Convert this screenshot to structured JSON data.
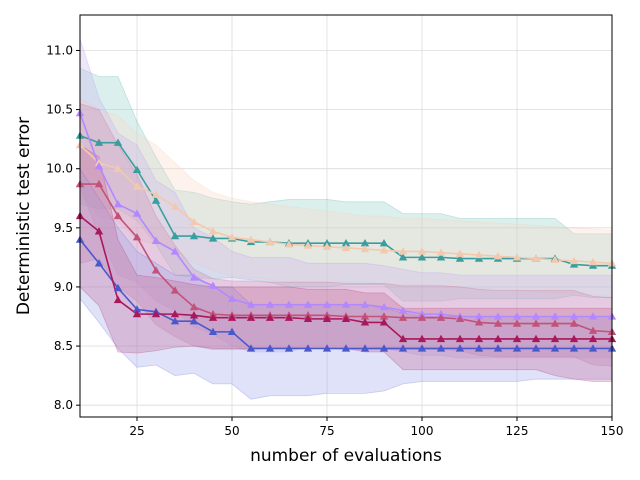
{
  "chart_data": {
    "type": "line",
    "xlabel": "number of evaluations",
    "ylabel": "Deterministic test error",
    "xlim": [
      10,
      150
    ],
    "ylim": [
      7.9,
      11.3
    ],
    "xticks": [
      25,
      50,
      75,
      100,
      125,
      150
    ],
    "yticks": [
      8.0,
      8.5,
      9.0,
      9.5,
      10.0,
      10.5,
      11.0
    ],
    "grid": true,
    "x": [
      10,
      15,
      20,
      25,
      30,
      35,
      40,
      45,
      50,
      55,
      60,
      65,
      70,
      75,
      80,
      85,
      90,
      95,
      100,
      105,
      110,
      115,
      120,
      125,
      130,
      135,
      140,
      145,
      150
    ],
    "series": [
      {
        "color": "#3a9e9e",
        "fill": "#8fd0c8",
        "values": [
          10.28,
          10.22,
          10.22,
          9.99,
          9.73,
          9.43,
          9.43,
          9.41,
          9.41,
          9.38,
          9.38,
          9.37,
          9.37,
          9.37,
          9.37,
          9.37,
          9.37,
          9.25,
          9.25,
          9.25,
          9.24,
          9.24,
          9.24,
          9.24,
          9.24,
          9.24,
          9.19,
          9.18,
          9.18
        ],
        "upper": [
          10.85,
          10.78,
          10.78,
          10.4,
          10.1,
          9.82,
          9.8,
          9.75,
          9.72,
          9.7,
          9.72,
          9.74,
          9.74,
          9.74,
          9.72,
          9.72,
          9.72,
          9.62,
          9.62,
          9.62,
          9.58,
          9.58,
          9.58,
          9.58,
          9.58,
          9.58,
          9.45,
          9.45,
          9.45
        ],
        "lower": [
          9.7,
          9.66,
          9.66,
          9.56,
          9.36,
          9.1,
          9.08,
          9.07,
          9.08,
          9.06,
          9.04,
          9.0,
          9.0,
          9.0,
          9.02,
          9.02,
          9.02,
          8.88,
          8.88,
          8.88,
          8.9,
          8.9,
          8.9,
          8.9,
          8.9,
          8.9,
          8.93,
          8.91,
          8.91
        ]
      },
      {
        "color": "#f2c9ae",
        "fill": "#fbd8c6",
        "values": [
          10.2,
          10.05,
          10.0,
          9.85,
          9.78,
          9.68,
          9.55,
          9.47,
          9.42,
          9.4,
          9.38,
          9.36,
          9.35,
          9.34,
          9.33,
          9.32,
          9.31,
          9.3,
          9.3,
          9.29,
          9.28,
          9.27,
          9.26,
          9.25,
          9.24,
          9.23,
          9.22,
          9.21,
          9.2
        ],
        "upper": [
          10.6,
          10.5,
          10.45,
          10.3,
          10.2,
          10.05,
          9.9,
          9.8,
          9.75,
          9.72,
          9.7,
          9.68,
          9.66,
          9.64,
          9.62,
          9.6,
          9.6,
          9.58,
          9.58,
          9.57,
          9.56,
          9.55,
          9.54,
          9.53,
          9.52,
          9.51,
          9.5,
          9.49,
          9.48
        ],
        "lower": [
          9.8,
          9.6,
          9.55,
          9.4,
          9.36,
          9.31,
          9.2,
          9.14,
          9.09,
          9.08,
          9.06,
          9.04,
          9.04,
          9.04,
          9.04,
          9.04,
          9.02,
          9.02,
          9.02,
          9.01,
          9.0,
          8.99,
          8.98,
          8.97,
          8.96,
          8.95,
          8.94,
          8.93,
          8.92
        ]
      },
      {
        "color": "#b388ff",
        "fill": "#c9b2f0",
        "values": [
          10.47,
          10.02,
          9.7,
          9.62,
          9.39,
          9.3,
          9.08,
          9.01,
          8.9,
          8.85,
          8.85,
          8.85,
          8.85,
          8.85,
          8.85,
          8.85,
          8.83,
          8.8,
          8.77,
          8.77,
          8.75,
          8.75,
          8.75,
          8.75,
          8.75,
          8.75,
          8.75,
          8.75,
          8.75
        ],
        "upper": [
          11.1,
          10.6,
          10.3,
          10.2,
          9.9,
          9.8,
          9.5,
          9.42,
          9.3,
          9.25,
          9.25,
          9.25,
          9.2,
          9.2,
          9.2,
          9.2,
          9.18,
          9.15,
          9.12,
          9.12,
          9.1,
          9.1,
          9.1,
          9.1,
          9.1,
          9.1,
          9.1,
          9.1,
          9.1
        ],
        "lower": [
          9.84,
          9.44,
          9.1,
          9.04,
          8.88,
          8.8,
          8.66,
          8.6,
          8.5,
          8.45,
          8.45,
          8.45,
          8.5,
          8.5,
          8.5,
          8.5,
          8.48,
          8.45,
          8.42,
          8.42,
          8.4,
          8.4,
          8.4,
          8.4,
          8.4,
          8.4,
          8.4,
          8.4,
          8.4
        ]
      },
      {
        "color": "#c2527a",
        "fill": "#d58fae",
        "values": [
          9.87,
          9.87,
          9.6,
          9.42,
          9.14,
          8.97,
          8.83,
          8.77,
          8.76,
          8.76,
          8.76,
          8.76,
          8.76,
          8.76,
          8.75,
          8.75,
          8.75,
          8.74,
          8.74,
          8.74,
          8.73,
          8.7,
          8.69,
          8.69,
          8.69,
          8.69,
          8.69,
          8.63,
          8.62
        ],
        "upper": [
          10.55,
          10.5,
          10.2,
          9.95,
          9.6,
          9.35,
          9.15,
          9.07,
          9.05,
          9.05,
          9.04,
          9.04,
          9.04,
          9.04,
          9.03,
          9.03,
          9.03,
          9.01,
          9.01,
          9.01,
          9.0,
          8.98,
          8.97,
          8.97,
          8.97,
          8.97,
          8.97,
          8.92,
          8.91
        ],
        "lower": [
          9.2,
          9.24,
          9.0,
          8.88,
          8.68,
          8.58,
          8.5,
          8.47,
          8.47,
          8.47,
          8.48,
          8.48,
          8.48,
          8.48,
          8.47,
          8.47,
          8.47,
          8.47,
          8.47,
          8.47,
          8.46,
          8.42,
          8.41,
          8.41,
          8.41,
          8.41,
          8.41,
          8.34,
          8.33
        ]
      },
      {
        "color": "#4a58cc",
        "fill": "#9aa4ec",
        "values": [
          9.4,
          9.2,
          8.99,
          8.81,
          8.79,
          8.71,
          8.71,
          8.62,
          8.62,
          8.48,
          8.48,
          8.48,
          8.48,
          8.48,
          8.48,
          8.48,
          8.48,
          8.48,
          8.48,
          8.48,
          8.48,
          8.48,
          8.48,
          8.48,
          8.48,
          8.48,
          8.48,
          8.48,
          8.48
        ],
        "upper": [
          10.0,
          9.75,
          9.5,
          9.3,
          9.2,
          9.1,
          9.1,
          9.0,
          9.0,
          8.85,
          8.85,
          8.85,
          8.85,
          8.85,
          8.85,
          8.85,
          8.82,
          8.78,
          8.75,
          8.75,
          8.75,
          8.75,
          8.75,
          8.75,
          8.75,
          8.75,
          8.75,
          8.75,
          8.75
        ],
        "lower": [
          8.9,
          8.7,
          8.48,
          8.32,
          8.34,
          8.25,
          8.27,
          8.18,
          8.18,
          8.05,
          8.08,
          8.08,
          8.08,
          8.1,
          8.1,
          8.1,
          8.12,
          8.18,
          8.2,
          8.2,
          8.2,
          8.2,
          8.2,
          8.2,
          8.22,
          8.22,
          8.22,
          8.22,
          8.22
        ]
      },
      {
        "color": "#a8185a",
        "fill": "#c46a98",
        "values": [
          9.6,
          9.47,
          8.89,
          8.77,
          8.77,
          8.77,
          8.76,
          8.74,
          8.74,
          8.74,
          8.74,
          8.74,
          8.73,
          8.73,
          8.73,
          8.7,
          8.7,
          8.56,
          8.56,
          8.56,
          8.56,
          8.56,
          8.56,
          8.56,
          8.56,
          8.56,
          8.56,
          8.56,
          8.56
        ],
        "upper": [
          10.2,
          10.1,
          9.4,
          9.1,
          9.08,
          9.05,
          9.02,
          9.0,
          9.0,
          9.0,
          9.0,
          9.0,
          8.98,
          8.98,
          8.98,
          8.95,
          8.95,
          8.82,
          8.82,
          8.82,
          8.82,
          8.82,
          8.82,
          8.82,
          8.82,
          8.82,
          8.82,
          8.82,
          8.82
        ],
        "lower": [
          9.0,
          8.84,
          8.45,
          8.44,
          8.46,
          8.49,
          8.5,
          8.48,
          8.48,
          8.48,
          8.48,
          8.48,
          8.48,
          8.48,
          8.48,
          8.45,
          8.45,
          8.3,
          8.3,
          8.3,
          8.3,
          8.3,
          8.3,
          8.3,
          8.3,
          8.25,
          8.22,
          8.2,
          8.2
        ]
      }
    ]
  }
}
